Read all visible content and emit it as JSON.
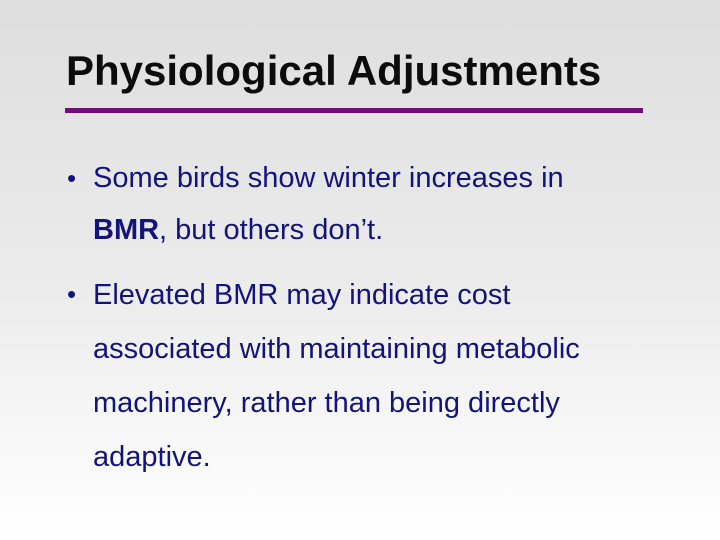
{
  "slide": {
    "title": "Physiological Adjustments",
    "bullet_glyph": "•",
    "bullet1": {
      "line1": "Some birds show winter increases in",
      "line2_bold": "BMR",
      "line2_rest": ", but others don’t."
    },
    "bullet2": {
      "line1": "Elevated BMR may indicate cost",
      "line2": "associated with maintaining metabolic",
      "line3": "machinery, rather than being directly",
      "line4": "adaptive."
    },
    "colors": {
      "title": "#0c0c0c",
      "body_text": "#13137d",
      "accent_rule": "#6f0f74",
      "background_top": "#dedede",
      "background_bottom": "#ffffff"
    }
  }
}
